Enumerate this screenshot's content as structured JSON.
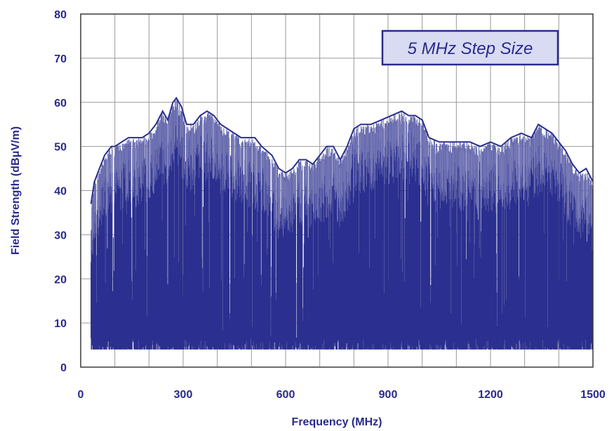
{
  "chart_data": {
    "type": "area",
    "title": "",
    "xlabel": "Frequency (MHz)",
    "ylabel": "Field Strength (dBμV/m)",
    "xlim": [
      0,
      1500
    ],
    "ylim": [
      0,
      80
    ],
    "x_ticks": [
      0,
      300,
      600,
      900,
      1200,
      1500
    ],
    "y_ticks": [
      0,
      10,
      20,
      30,
      40,
      50,
      60,
      70,
      80
    ],
    "x_tick_labels": [
      "0",
      "300",
      "600",
      "900",
      "1200",
      "1500"
    ],
    "y_tick_labels": [
      "0",
      "10",
      "20",
      "30",
      "40",
      "50",
      "60",
      "70",
      "80"
    ],
    "grid": true,
    "annotation": "5 MHz Step Size",
    "noise_floor": 4,
    "colors": {
      "fill": "#2b2f8f",
      "peaks": "#8c8fc0",
      "text": "#2a2a8c",
      "box_fill": "#d8dbf2",
      "box_border": "#2a2a8c"
    },
    "envelope": {
      "x": [
        30,
        40,
        50,
        60,
        70,
        80,
        90,
        100,
        120,
        140,
        160,
        180,
        200,
        220,
        240,
        255,
        270,
        280,
        295,
        310,
        330,
        350,
        370,
        390,
        410,
        430,
        450,
        470,
        490,
        510,
        530,
        560,
        580,
        600,
        620,
        640,
        660,
        680,
        700,
        720,
        740,
        760,
        780,
        800,
        820,
        850,
        880,
        910,
        940,
        960,
        980,
        1000,
        1020,
        1050,
        1080,
        1110,
        1140,
        1170,
        1200,
        1230,
        1260,
        1290,
        1320,
        1340,
        1360,
        1380,
        1400,
        1420,
        1440,
        1460,
        1480,
        1500
      ],
      "y": [
        37,
        42,
        44,
        46,
        48,
        49,
        50,
        50,
        51,
        52,
        52,
        52,
        53,
        55,
        58,
        56,
        60,
        61,
        59,
        55,
        55,
        57,
        58,
        57,
        55,
        54,
        53,
        52,
        52,
        52,
        50,
        48,
        45,
        44,
        45,
        47,
        47,
        46,
        48,
        50,
        50,
        47,
        50,
        54,
        55,
        55,
        56,
        57,
        58,
        57,
        57,
        56,
        52,
        51,
        51,
        51,
        51,
        50,
        51,
        50,
        52,
        53,
        52,
        55,
        54,
        53,
        51,
        49,
        46,
        44,
        45,
        42
      ]
    }
  }
}
